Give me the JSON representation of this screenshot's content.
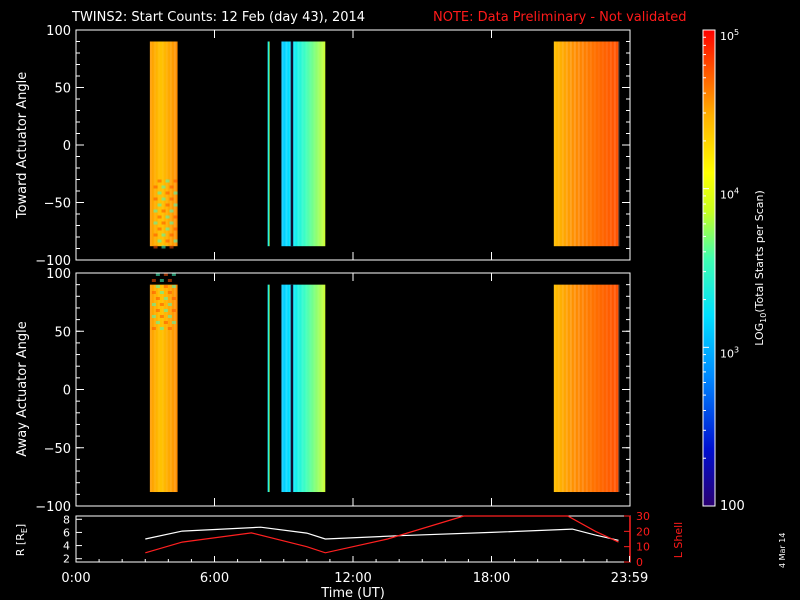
{
  "title": "TWINS2: Start Counts: 12 Feb (day  43), 2014",
  "note": "NOTE: Data Preliminary - Not validated",
  "date_stamp": "4 Mar 14",
  "colors": {
    "background": "#000000",
    "axes": "#ffffff",
    "note": "#ff1a1a",
    "r_line": "#ffffff",
    "lshell_line": "#ff2020"
  },
  "chart_data": [
    {
      "type": "heatmap",
      "ylabel": "Toward Actuator Angle",
      "ylim": [
        -100,
        100
      ],
      "yticks": [
        "100",
        "50",
        "0",
        "−50",
        "−100"
      ],
      "xlim": [
        0,
        24
      ],
      "blocks": [
        {
          "x": [
            3.2,
            4.4
          ],
          "level": "high",
          "note": "yellow-orange, banded near -100..-30"
        },
        {
          "x": [
            8.3,
            8.35
          ],
          "level": "low",
          "note": "thin cyan line"
        },
        {
          "x": [
            8.9,
            10.8
          ],
          "level": "low",
          "note": "cyan-green"
        },
        {
          "x": [
            20.7,
            23.5
          ],
          "level": "high",
          "note": "orange-red"
        }
      ]
    },
    {
      "type": "heatmap",
      "ylabel": "Away Actuator Angle",
      "ylim": [
        -100,
        100
      ],
      "yticks": [
        "100",
        "50",
        "0",
        "−50",
        "−100"
      ],
      "xlim": [
        0,
        24
      ],
      "blocks": [
        {
          "x": [
            3.2,
            4.4
          ],
          "level": "high",
          "note": "yellow-orange, banded near 50..100"
        },
        {
          "x": [
            8.3,
            8.35
          ],
          "level": "low",
          "note": "thin cyan line"
        },
        {
          "x": [
            8.9,
            10.8
          ],
          "level": "low",
          "note": "cyan-green, orange near 100"
        },
        {
          "x": [
            20.7,
            23.5
          ],
          "level": "high",
          "note": "orange-red"
        }
      ]
    },
    {
      "type": "line",
      "xlabel": "Time (UT)",
      "xticks": [
        "0:00",
        "6:00",
        "12:00",
        "18:00",
        "23:59"
      ],
      "xlim": [
        0,
        24
      ],
      "left_axis": {
        "label": "R [R",
        "label_sub": "E",
        "label_end": "]",
        "ticks": [
          "8",
          "6",
          "4",
          "2"
        ],
        "ylim": [
          1.5,
          8.5
        ]
      },
      "right_axis": {
        "label": "L Shell",
        "ticks": [
          "30",
          "20",
          "10",
          "0"
        ],
        "ylim": [
          0,
          30
        ]
      },
      "series": [
        {
          "axis": "left",
          "points": [
            [
              3.0,
              5.0
            ],
            [
              4.6,
              6.2
            ],
            [
              8.0,
              6.8
            ],
            [
              10.0,
              5.9
            ],
            [
              10.8,
              5.0
            ],
            [
              14.0,
              5.5
            ],
            [
              18.0,
              6.0
            ],
            [
              21.5,
              6.5
            ],
            [
              22.5,
              5.6
            ],
            [
              23.5,
              4.8
            ]
          ]
        },
        {
          "axis": "right",
          "points": [
            [
              3.0,
              6.0
            ],
            [
              4.6,
              13.0
            ],
            [
              7.6,
              19.0
            ],
            [
              10.0,
              10.0
            ],
            [
              10.8,
              6.0
            ],
            [
              13.5,
              15.0
            ],
            [
              16.8,
              30.0
            ],
            [
              21.3,
              30.0
            ],
            [
              22.5,
              20.0
            ],
            [
              23.5,
              13.0
            ]
          ]
        }
      ]
    }
  ],
  "colorbar": {
    "label": "LOG",
    "label_sub": "10",
    "label_end": "(Total Starts per Scan)",
    "min_label": "100",
    "ticks": [
      {
        "base": "10",
        "exp": "5",
        "value": 5
      },
      {
        "base": "10",
        "exp": "4",
        "value": 4
      },
      {
        "base": "10",
        "exp": "3",
        "value": 3
      }
    ],
    "range": [
      2,
      5
    ]
  }
}
